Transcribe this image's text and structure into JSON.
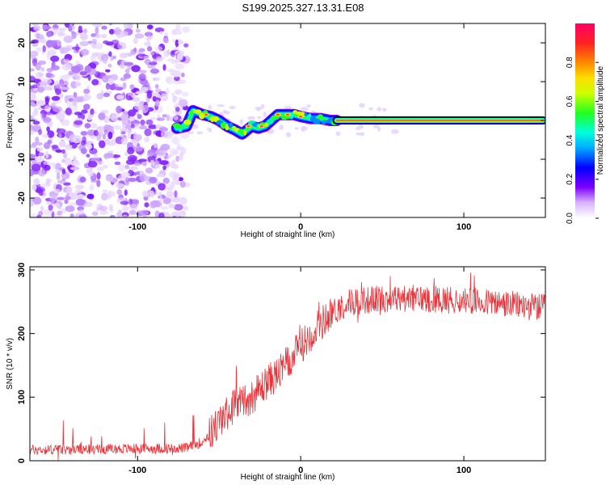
{
  "title": "S199.2025.327.13.31.E08",
  "chart_data": [
    {
      "type": "heatmap",
      "name": "spectrogram",
      "xlabel": "Height of straight line (km)",
      "ylabel": "Frequency (Hz)",
      "xlim": [
        -166,
        150
      ],
      "ylim": [
        -25,
        25
      ],
      "xticks": [
        -100,
        0,
        100
      ],
      "yticks": [
        -20,
        -10,
        0,
        10,
        20
      ],
      "colorbar": {
        "label": "Normalized spectral amplitude",
        "range": [
          0,
          1
        ],
        "ticks": [
          "0.0",
          "0.2",
          "0.4",
          "0.6",
          "0.8"
        ]
      },
      "ridge": {
        "noise_region_x": [
          -166,
          -76
        ],
        "wandering_x": [
          -76,
          22
        ],
        "wandering_f": [
          [
            -76,
            -2
          ],
          [
            -70,
            -1.5
          ],
          [
            -66,
            2.5
          ],
          [
            -60,
            1.5
          ],
          [
            -55,
            1
          ],
          [
            -50,
            0
          ],
          [
            -45,
            -1.5
          ],
          [
            -40,
            -2.5
          ],
          [
            -36,
            -3.5
          ],
          [
            -30,
            -1.5
          ],
          [
            -26,
            -2
          ],
          [
            -22,
            -1.5
          ],
          [
            -18,
            0
          ],
          [
            -14,
            1.5
          ],
          [
            -8,
            1.5
          ],
          [
            -4,
            1.5
          ],
          [
            0,
            1
          ],
          [
            6,
            0.5
          ],
          [
            12,
            0.5
          ],
          [
            18,
            0
          ],
          [
            22,
            0
          ]
        ],
        "flat_x": [
          22,
          150
        ],
        "flat_f": 0
      }
    },
    {
      "type": "line",
      "name": "snr",
      "xlabel": "Height of straight line (km)",
      "ylabel": "SNR (10 * v/v)",
      "xlim": [
        -166,
        150
      ],
      "ylim": [
        0,
        305
      ],
      "xticks": [
        -100,
        0,
        100
      ],
      "yticks": [
        0,
        100,
        200,
        300
      ],
      "trend": [
        [
          -166,
          17
        ],
        [
          -70,
          20
        ],
        [
          -60,
          30
        ],
        [
          -50,
          60
        ],
        [
          -40,
          90
        ],
        [
          -30,
          100
        ],
        [
          -20,
          125
        ],
        [
          -10,
          145
        ],
        [
          0,
          180
        ],
        [
          10,
          210
        ],
        [
          20,
          235
        ],
        [
          30,
          250
        ],
        [
          50,
          255
        ],
        [
          80,
          255
        ],
        [
          110,
          250
        ],
        [
          130,
          245
        ],
        [
          150,
          240
        ]
      ],
      "series_color": "#e8343a"
    }
  ]
}
